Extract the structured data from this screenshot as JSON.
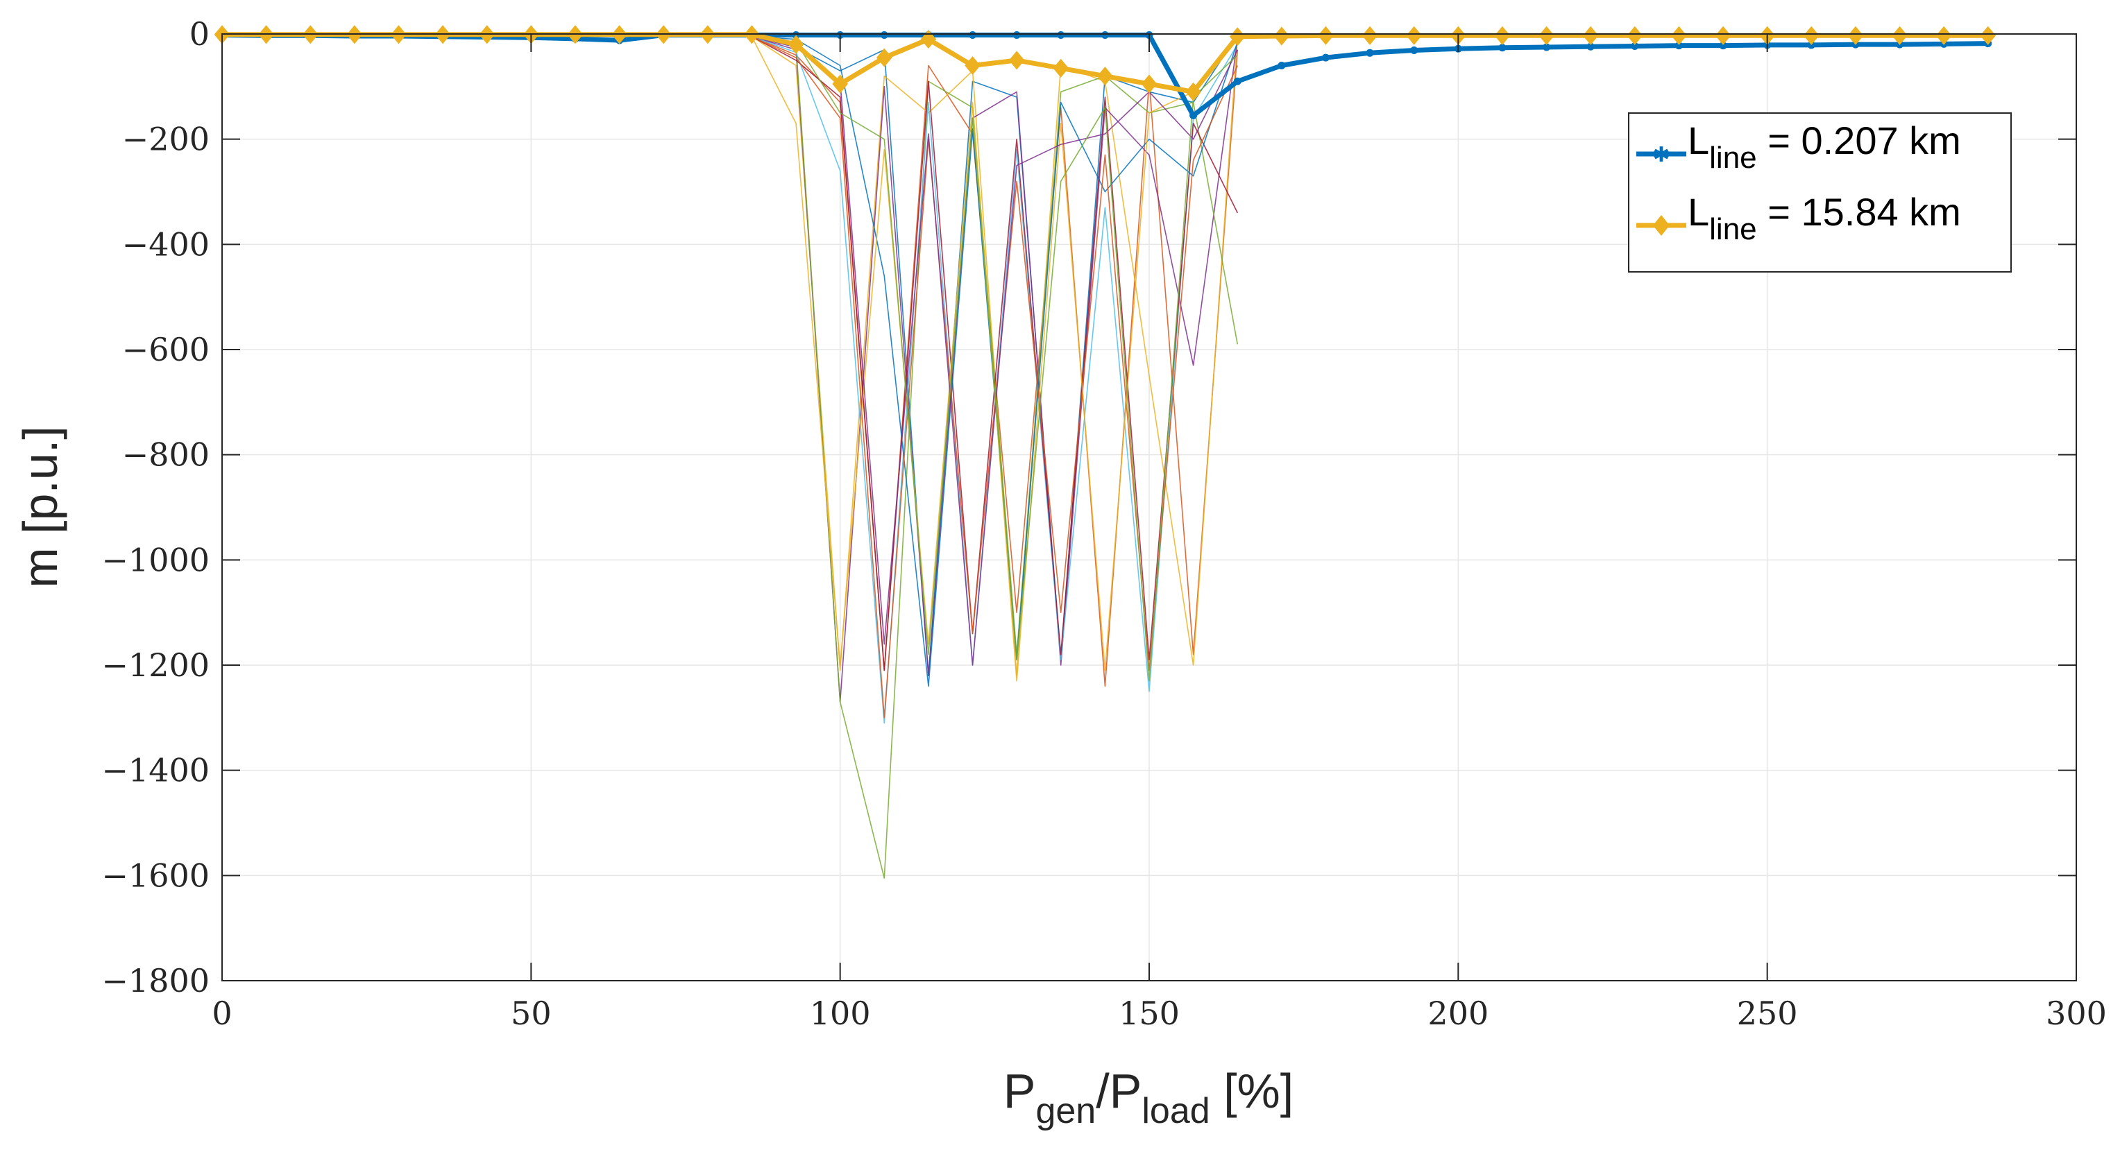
{
  "chart_data": {
    "type": "line",
    "xlabel": {
      "main": "P",
      "sub1": "gen",
      "mid": "/P",
      "sub2": "load",
      "tail": " [%]"
    },
    "ylabel": "m [p.u.]",
    "xlim": [
      0,
      300
    ],
    "ylim": [
      -1800,
      0
    ],
    "xticks": [
      0,
      50,
      100,
      150,
      200,
      250,
      300
    ],
    "yticks": [
      0,
      -200,
      -400,
      -600,
      -800,
      -1000,
      -1200,
      -1400,
      -1600,
      -1800
    ],
    "grid": true,
    "legend_position": "top-right",
    "x": [
      0,
      7.14,
      14.29,
      21.43,
      28.57,
      35.71,
      42.86,
      50,
      57.14,
      64.29,
      71.43,
      78.57,
      85.71,
      92.86,
      100,
      107.14,
      114.29,
      121.43,
      128.57,
      135.71,
      142.86,
      150,
      157.14,
      164.29,
      171.43,
      178.57,
      185.71,
      192.86,
      200,
      207.14,
      214.29,
      221.43,
      228.57,
      235.71,
      242.86,
      250,
      257.14,
      264.29,
      271.43,
      278.57,
      285.71
    ],
    "series": [
      {
        "name": "L_line = 0.207 km",
        "label_main": "L",
        "label_sub": "line",
        "label_tail": " = 0.207 km",
        "color": "#0072BD",
        "marker": "star",
        "values": [
          -2,
          -3,
          -3,
          -4,
          -4,
          -5,
          -6,
          -7,
          -9,
          -12,
          -2,
          -2,
          -2,
          -2,
          -2,
          -2,
          -2,
          -2,
          -2,
          -2,
          -2,
          -2,
          -155,
          -90,
          -60,
          -45,
          -36,
          -31,
          -28,
          -26,
          -25,
          -24,
          -23,
          -22,
          -22,
          -21,
          -21,
          -20,
          -20,
          -19,
          -18
        ]
      },
      {
        "name": "L_line = 15.84 km",
        "label_main": "L",
        "label_sub": "line",
        "label_tail": " = 15.84 km",
        "color": "#EDB120",
        "marker": "diamond",
        "values": [
          -1,
          -1,
          -1,
          -1,
          -1,
          -1,
          -1,
          -1,
          -1,
          -1,
          -1,
          -1,
          -1,
          -20,
          -95,
          -45,
          -10,
          -60,
          -50,
          -65,
          -80,
          -95,
          -110,
          -5,
          -4,
          -3,
          -3,
          -3,
          -3,
          -3,
          -3,
          -3,
          -3,
          -3,
          -3,
          -3,
          -3,
          -3,
          -3,
          -3,
          -3
        ]
      }
    ],
    "background_series": [
      {
        "color": "#0072BD",
        "values": [
          -5,
          -25,
          -70,
          -30,
          -1220,
          -90,
          -120,
          -1190,
          -80,
          -110,
          -130,
          -2
        ]
      },
      {
        "color": "#D95319",
        "values": [
          -5,
          -40,
          -130,
          -1210,
          -60,
          -190,
          -1100,
          -140,
          -1240,
          -90,
          -1180,
          -30
        ]
      },
      {
        "color": "#EDB120",
        "values": [
          -5,
          -60,
          -1210,
          -80,
          -150,
          -70,
          -1220,
          -60,
          -90,
          -650,
          -1200,
          -5
        ]
      },
      {
        "color": "#7E2F8E",
        "values": [
          -5,
          -30,
          -1270,
          -100,
          -1220,
          -160,
          -110,
          -1200,
          -140,
          -230,
          -630,
          -10
        ]
      },
      {
        "color": "#77AC30",
        "values": [
          -5,
          -20,
          -1270,
          -1605,
          -90,
          -140,
          -1180,
          -110,
          -80,
          -150,
          -130,
          -590
        ]
      },
      {
        "color": "#4DBEEE",
        "values": [
          -5,
          -35,
          -260,
          -1310,
          -130,
          -1200,
          -220,
          -1190,
          -330,
          -1250,
          -160,
          -20
        ]
      },
      {
        "color": "#A2142F",
        "values": [
          -5,
          -50,
          -120,
          -1210,
          -90,
          -1140,
          -200,
          -1180,
          -120,
          -1190,
          -170,
          -340
        ]
      },
      {
        "color": "#0072BD",
        "values": [
          -5,
          -10,
          -60,
          -460,
          -1240,
          -180,
          -1190,
          -130,
          -300,
          -200,
          -270,
          -15
        ]
      },
      {
        "color": "#D95319",
        "values": [
          -5,
          -45,
          -160,
          -1300,
          -200,
          -1140,
          -280,
          -1100,
          -230,
          -1210,
          -240,
          -60
        ]
      },
      {
        "color": "#EDB120",
        "values": [
          -5,
          -170,
          -1200,
          -220,
          -1160,
          -130,
          -1230,
          -170,
          -1210,
          -150,
          -110,
          -8
        ]
      },
      {
        "color": "#7E2F8E",
        "values": [
          -5,
          -25,
          -90,
          -1160,
          -190,
          -1200,
          -250,
          -210,
          -190,
          -110,
          -200,
          -30
        ]
      },
      {
        "color": "#77AC30",
        "values": [
          -5,
          -15,
          -150,
          -200,
          -1180,
          -160,
          -1190,
          -280,
          -140,
          -1230,
          -120,
          -40
        ]
      }
    ],
    "background_x": [
      85.71,
      92.86,
      100,
      107.14,
      114.29,
      121.43,
      128.57,
      135.71,
      142.86,
      150,
      157.14,
      164.29
    ]
  }
}
